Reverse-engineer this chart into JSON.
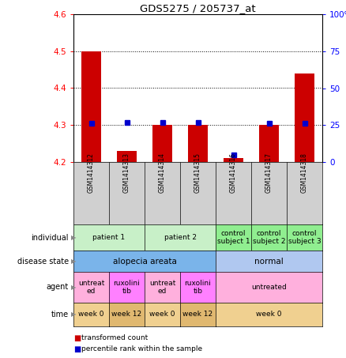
{
  "title": "GDS5275 / 205737_at",
  "samples": [
    "GSM1414312",
    "GSM1414313",
    "GSM1414314",
    "GSM1414315",
    "GSM1414316",
    "GSM1414317",
    "GSM1414318"
  ],
  "transformed_count": [
    4.5,
    4.23,
    4.3,
    4.3,
    4.21,
    4.3,
    4.44
  ],
  "percentile_rank": [
    26,
    27,
    27,
    27,
    5,
    26,
    26
  ],
  "ylim_left": [
    4.2,
    4.6
  ],
  "ylim_right": [
    0,
    100
  ],
  "yticks_left": [
    4.2,
    4.3,
    4.4,
    4.5,
    4.6
  ],
  "yticks_right": [
    0,
    25,
    50,
    75,
    100
  ],
  "bar_color": "#cc0000",
  "dot_color": "#0000cc",
  "individual_entries": [
    {
      "cols": [
        0,
        1
      ],
      "color": "#c8f0c8",
      "text": "patient 1"
    },
    {
      "cols": [
        2,
        3
      ],
      "color": "#c8f0c8",
      "text": "patient 2"
    },
    {
      "cols": [
        4
      ],
      "color": "#90ee90",
      "text": "control\nsubject 1"
    },
    {
      "cols": [
        5
      ],
      "color": "#90ee90",
      "text": "control\nsubject 2"
    },
    {
      "cols": [
        6
      ],
      "color": "#90ee90",
      "text": "control\nsubject 3"
    }
  ],
  "disease_entries": [
    {
      "cols": [
        0,
        1,
        2,
        3
      ],
      "color": "#7ab4ea",
      "text": "alopecia areata"
    },
    {
      "cols": [
        4,
        5,
        6
      ],
      "color": "#b0c8f0",
      "text": "normal"
    }
  ],
  "agent_entries": [
    {
      "cols": [
        0
      ],
      "color": "#ffb0dd",
      "text": "untreat\ned"
    },
    {
      "cols": [
        1
      ],
      "color": "#ff80ff",
      "text": "ruxolini\ntib"
    },
    {
      "cols": [
        2
      ],
      "color": "#ffb0dd",
      "text": "untreat\ned"
    },
    {
      "cols": [
        3
      ],
      "color": "#ff80ff",
      "text": "ruxolini\ntib"
    },
    {
      "cols": [
        4,
        5,
        6
      ],
      "color": "#ffb0dd",
      "text": "untreated"
    }
  ],
  "time_entries": [
    {
      "cols": [
        0
      ],
      "color": "#f0d090",
      "text": "week 0"
    },
    {
      "cols": [
        1
      ],
      "color": "#e0b870",
      "text": "week 12"
    },
    {
      "cols": [
        2
      ],
      "color": "#f0d090",
      "text": "week 0"
    },
    {
      "cols": [
        3
      ],
      "color": "#e0b870",
      "text": "week 12"
    },
    {
      "cols": [
        4,
        5,
        6
      ],
      "color": "#f0d090",
      "text": "week 0"
    }
  ],
  "row_labels": [
    "individual",
    "disease state",
    "agent",
    "time"
  ],
  "legend_items": [
    {
      "color": "#cc0000",
      "label": "transformed count"
    },
    {
      "color": "#0000cc",
      "label": "percentile rank within the sample"
    }
  ],
  "sample_bg": "#d0d0d0"
}
